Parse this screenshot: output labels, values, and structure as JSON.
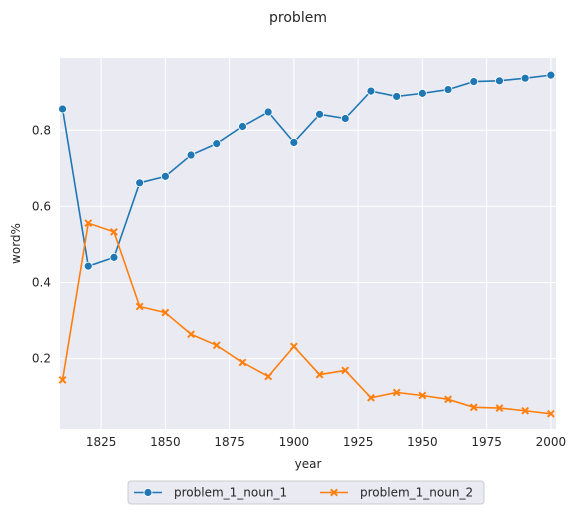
{
  "colors": {
    "plot_background": "#eaeaf2",
    "grid": "#ffffff",
    "series_1": "#1f77b4",
    "series_2": "#ff7f0e",
    "legend_border": "#cccccc"
  },
  "chart_data": {
    "type": "line",
    "title": "problem",
    "xlabel": "year",
    "ylabel": "word%",
    "xlim": [
      1809,
      2002
    ],
    "ylim": [
      0.015,
      0.99
    ],
    "xticks": [
      1825,
      1850,
      1875,
      1900,
      1925,
      1950,
      1975,
      2000
    ],
    "yticks": [
      0.2,
      0.4,
      0.6,
      0.8
    ],
    "grid": true,
    "legend_position": "bottom-center",
    "series": [
      {
        "name": "problem_1_noun_1",
        "marker": "circle",
        "color": "#1f77b4",
        "x": [
          1810,
          1820,
          1830,
          1840,
          1850,
          1860,
          1870,
          1880,
          1890,
          1900,
          1910,
          1920,
          1930,
          1940,
          1950,
          1960,
          1970,
          1980,
          1990,
          2000
        ],
        "y": [
          0.856,
          0.443,
          0.466,
          0.662,
          0.679,
          0.735,
          0.765,
          0.81,
          0.848,
          0.768,
          0.842,
          0.831,
          0.903,
          0.889,
          0.897,
          0.907,
          0.928,
          0.93,
          0.937,
          0.945
        ]
      },
      {
        "name": "problem_1_noun_2",
        "marker": "x",
        "color": "#ff7f0e",
        "x": [
          1810,
          1820,
          1830,
          1840,
          1850,
          1860,
          1870,
          1880,
          1890,
          1900,
          1910,
          1920,
          1930,
          1940,
          1950,
          1960,
          1970,
          1980,
          1990,
          2000
        ],
        "y": [
          0.144,
          0.556,
          0.533,
          0.337,
          0.321,
          0.264,
          0.235,
          0.19,
          0.153,
          0.232,
          0.158,
          0.169,
          0.097,
          0.111,
          0.103,
          0.093,
          0.072,
          0.07,
          0.063,
          0.055
        ]
      }
    ]
  }
}
